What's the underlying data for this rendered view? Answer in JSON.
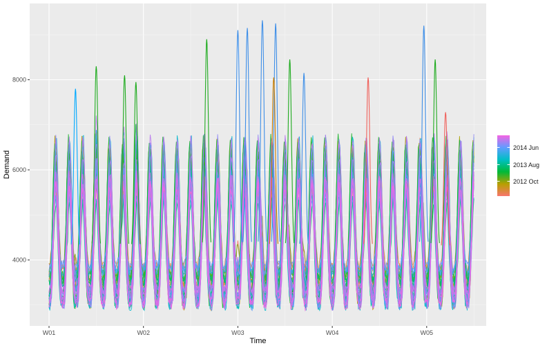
{
  "chart_data": {
    "type": "line",
    "title": "",
    "xlabel": "Time",
    "ylabel": "Demand",
    "x_ticks": [
      "W01",
      "W02",
      "W03",
      "W04",
      "W05"
    ],
    "y_ticks": [
      4000,
      6000,
      8000
    ],
    "ylim": [
      2800,
      9400
    ],
    "xlim": [
      0,
      4.5
    ],
    "x_units": "weeks from start of W01",
    "grid": true,
    "panel_background": "#ebebeb",
    "legend": {
      "placement": "right",
      "type": "colorbar",
      "labels": [
        "2014 Jun",
        "2013 Aug",
        "2012 Oct"
      ],
      "gradient_colors": [
        "#f8766d",
        "#b79f00",
        "#00ba38",
        "#00bfc4",
        "#619cff",
        "#f564e3"
      ]
    },
    "series_summary": {
      "count": 39,
      "period_days": 1,
      "typical_min": 3000,
      "typical_max": 6500,
      "color_encodes": "month (2012 Oct to 2014 Jun)"
    },
    "peaks": [
      {
        "x": 0.28,
        "y": 7800,
        "color": "#00a9ff"
      },
      {
        "x": 0.5,
        "y": 8300,
        "color": "#1eab1e"
      },
      {
        "x": 0.8,
        "y": 8100,
        "color": "#1eab1e"
      },
      {
        "x": 0.92,
        "y": 7950,
        "color": "#1eab1e"
      },
      {
        "x": 1.67,
        "y": 8900,
        "color": "#1eab1e"
      },
      {
        "x": 2.0,
        "y": 9100,
        "color": "#3d8ee8"
      },
      {
        "x": 2.1,
        "y": 9150,
        "color": "#3d8ee8"
      },
      {
        "x": 2.26,
        "y": 9320,
        "color": "#3d8ee8"
      },
      {
        "x": 2.4,
        "y": 9250,
        "color": "#3d8ee8"
      },
      {
        "x": 2.38,
        "y": 8050,
        "color": "#c77c00"
      },
      {
        "x": 2.55,
        "y": 8450,
        "color": "#1eab1e"
      },
      {
        "x": 2.7,
        "y": 8150,
        "color": "#3d8ee8"
      },
      {
        "x": 3.38,
        "y": 8050,
        "color": "#f0605a"
      },
      {
        "x": 3.97,
        "y": 9200,
        "color": "#3d8ee8"
      },
      {
        "x": 4.09,
        "y": 8450,
        "color": "#1eab1e"
      },
      {
        "x": 4.2,
        "y": 7280,
        "color": "#f0605a"
      }
    ]
  }
}
